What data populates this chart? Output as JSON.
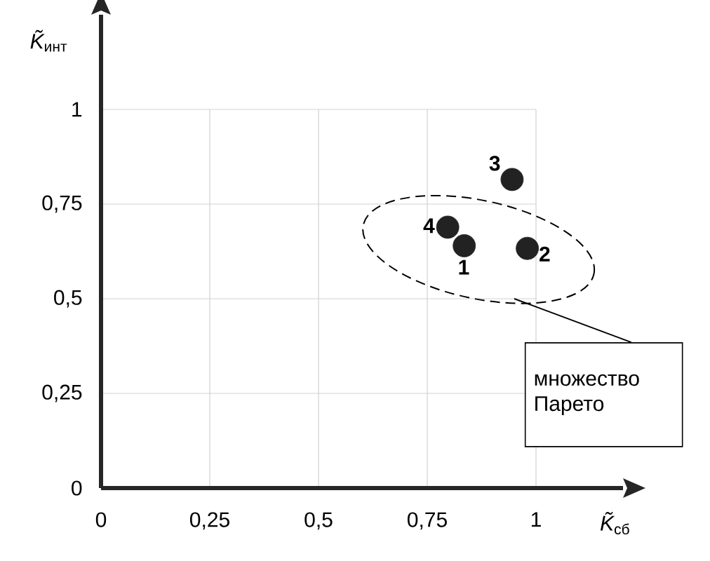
{
  "chart_data": {
    "type": "scatter",
    "xlabel": "*K̃*$_{сб}$",
    "ylabel": "*K̃*$_{инт}$",
    "x": [
      0.835,
      0.98,
      0.945,
      0.797
    ],
    "values": [
      0.64,
      0.633,
      0.815,
      0.689
    ],
    "color": "#222222",
    "marker": "circle",
    "grid": true,
    "xlim": [
      0,
      1.2
    ],
    "ylim": [
      0,
      1.25
    ],
    "xticks": [
      0,
      {
        "value": 0.25,
        "label": "0,25"
      },
      {
        "value": 0.5,
        "label": "0,5"
      },
      {
        "value": 0.75,
        "label": "0,75"
      },
      1
    ],
    "yticks": [
      0,
      {
        "value": 0.25,
        "label": "0,25"
      },
      {
        "value": 0.5,
        "label": "0,5"
      },
      {
        "value": 0.75,
        "label": "0,75"
      },
      1
    ],
    "annotations": [
      {
        "text": "1",
        "x": 0.835,
        "y": 0.64
      },
      {
        "text": "2",
        "x": 0.98,
        "y": 0.633
      },
      {
        "text": "3",
        "x": 0.945,
        "y": 0.815
      },
      {
        "text": "4",
        "x": 0.797,
        "y": 0.689
      },
      "множество Парето"
    ]
  }
}
